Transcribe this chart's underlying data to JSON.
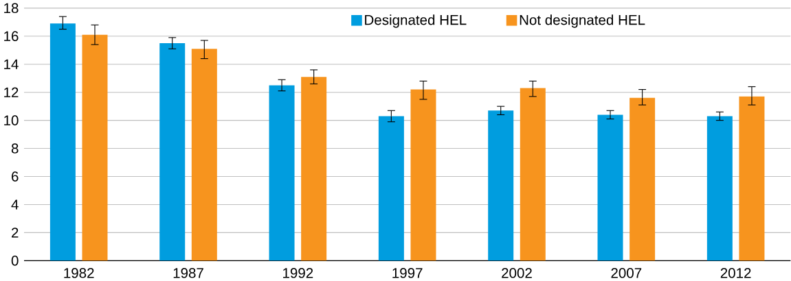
{
  "chart_data": {
    "type": "bar",
    "categories": [
      "1982",
      "1987",
      "1992",
      "1997",
      "2002",
      "2007",
      "2012"
    ],
    "series": [
      {
        "name": "Designated HEL",
        "color": "#009ddf",
        "values": [
          16.9,
          15.5,
          12.5,
          10.3,
          10.7,
          10.4,
          10.3
        ],
        "errors": [
          [
            16.5,
            17.4
          ],
          [
            15.1,
            15.9
          ],
          [
            12.1,
            12.9
          ],
          [
            9.9,
            10.7
          ],
          [
            10.4,
            11.0
          ],
          [
            10.1,
            10.7
          ],
          [
            10.0,
            10.6
          ]
        ]
      },
      {
        "name": "Not designated HEL",
        "color": "#f7941e",
        "values": [
          16.1,
          15.1,
          13.1,
          12.2,
          12.3,
          11.6,
          11.7
        ],
        "errors": [
          [
            15.4,
            16.8
          ],
          [
            14.4,
            15.7
          ],
          [
            12.6,
            13.6
          ],
          [
            11.5,
            12.8
          ],
          [
            11.7,
            12.8
          ],
          [
            11.1,
            12.2
          ],
          [
            11.1,
            12.4
          ]
        ]
      }
    ],
    "ylim": [
      0,
      18
    ],
    "yticks": [
      0,
      2,
      4,
      6,
      8,
      10,
      12,
      14,
      16,
      18
    ],
    "grid": "y",
    "legend": "top"
  }
}
